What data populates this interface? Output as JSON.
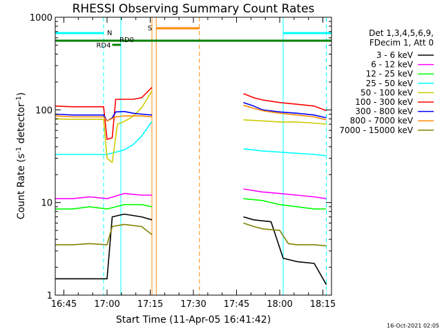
{
  "chart_data": {
    "type": "line",
    "title": "RHESSI Observing Summary Count Rates",
    "xlabel": "Start Time (11-Apr-05 16:41:42)",
    "ylabel_main": "Count Rate (s",
    "ylabel_sup1": "-1",
    "ylabel_mid": " detector",
    "ylabel_sup2": "-1",
    "ylabel_end": ")",
    "y_scale": "log",
    "ylim": [
      1,
      1000
    ],
    "xlim_minutes": [
      16.7,
      18.3
    ],
    "x_ticks": [
      {
        "label": "16:45",
        "value": 16.75
      },
      {
        "label": "17:00",
        "value": 17.0
      },
      {
        "label": "17:15",
        "value": 17.25
      },
      {
        "label": "17:30",
        "value": 17.5
      },
      {
        "label": "17:45",
        "value": 17.75
      },
      {
        "label": "18:00",
        "value": 18.0
      },
      {
        "label": "18:15",
        "value": 18.25
      }
    ],
    "y_ticks": [
      {
        "label": "1",
        "value": 1
      },
      {
        "label": "10",
        "value": 10
      },
      {
        "label": "100",
        "value": 100
      },
      {
        "label": "1000",
        "value": 1000
      }
    ],
    "legend_header": [
      "Det 1,3,4,5,6,9,",
      "FDecim 1, Att 0"
    ],
    "legend_position": "right",
    "series": [
      {
        "name": "3 - 6 keV",
        "color": "#000000",
        "segments": [
          {
            "x": [
              16.7,
              16.8,
              16.9,
              17.0,
              17.03,
              17.1,
              17.2,
              17.26
            ],
            "y": [
              1.5,
              1.5,
              1.5,
              1.5,
              7.0,
              7.5,
              7.0,
              6.5
            ]
          },
          {
            "x": [
              17.79,
              17.85,
              17.95,
              18.02,
              18.1,
              18.2,
              18.27
            ],
            "y": [
              7.0,
              6.5,
              6.2,
              2.5,
              2.3,
              2.2,
              1.3
            ]
          }
        ]
      },
      {
        "name": "6 - 12 keV",
        "color": "#ff00ff",
        "segments": [
          {
            "x": [
              16.7,
              16.8,
              16.9,
              17.0,
              17.1,
              17.2,
              17.26
            ],
            "y": [
              11,
              11,
              11.5,
              11,
              12.5,
              12,
              12
            ]
          },
          {
            "x": [
              17.79,
              17.9,
              18.0,
              18.1,
              18.2,
              18.27
            ],
            "y": [
              14,
              13,
              12.5,
              12,
              11.5,
              11
            ]
          }
        ]
      },
      {
        "name": "12 - 25 keV",
        "color": "#00ff00",
        "segments": [
          {
            "x": [
              16.7,
              16.8,
              16.9,
              17.0,
              17.1,
              17.2,
              17.26
            ],
            "y": [
              8.5,
              8.5,
              9,
              8.5,
              9.5,
              9.5,
              9
            ]
          },
          {
            "x": [
              17.79,
              17.9,
              18.0,
              18.1,
              18.2,
              18.27
            ],
            "y": [
              11,
              10.5,
              9.5,
              9,
              8.5,
              8.5
            ]
          }
        ]
      },
      {
        "name": "25 - 50 keV",
        "color": "#00ffff",
        "segments": [
          {
            "x": [
              16.7,
              16.8,
              16.9,
              17.0,
              17.1,
              17.15,
              17.2,
              17.26
            ],
            "y": [
              33,
              33,
              33,
              33,
              37,
              42,
              52,
              75
            ]
          },
          {
            "x": [
              17.79,
              17.9,
              18.0,
              18.1,
              18.2,
              18.27
            ],
            "y": [
              38,
              36,
              35,
              34,
              33,
              32
            ]
          }
        ]
      },
      {
        "name": "50 - 100 keV",
        "color": "#cccc00",
        "segments": [
          {
            "x": [
              16.7,
              16.8,
              16.9,
              16.98,
              17.0,
              17.03,
              17.06,
              17.1,
              17.15,
              17.2,
              17.26
            ],
            "y": [
              80,
              79,
              79,
              79,
              30,
              27,
              70,
              75,
              85,
              105,
              160
            ]
          },
          {
            "x": [
              17.79,
              17.9,
              18.0,
              18.1,
              18.2,
              18.27
            ],
            "y": [
              78,
              76,
              74,
              74,
              72,
              70
            ]
          }
        ]
      },
      {
        "name": "100 - 300 keV",
        "color": "#ff0000",
        "segments": [
          {
            "x": [
              16.7,
              16.8,
              16.9,
              16.98,
              17.0,
              17.03,
              17.05,
              17.1,
              17.15,
              17.2,
              17.26
            ],
            "y": [
              110,
              108,
              108,
              108,
              48,
              50,
              130,
              130,
              130,
              135,
              175
            ]
          },
          {
            "x": [
              17.79,
              17.85,
              17.9,
              18.0,
              18.1,
              18.2,
              18.27
            ],
            "y": [
              150,
              135,
              128,
              120,
              115,
              110,
              98
            ]
          }
        ]
      },
      {
        "name": "300 - 800 keV",
        "color": "#0000ff",
        "segments": [
          {
            "x": [
              16.7,
              16.8,
              16.9,
              16.98,
              17.0,
              17.03,
              17.05,
              17.1,
              17.15,
              17.2,
              17.26
            ],
            "y": [
              90,
              88,
              88,
              88,
              76,
              82,
              95,
              96,
              92,
              90,
              88
            ]
          },
          {
            "x": [
              17.79,
              17.85,
              17.9,
              18.0,
              18.1,
              18.2,
              18.27
            ],
            "y": [
              120,
              110,
              100,
              95,
              92,
              88,
              82
            ]
          }
        ]
      },
      {
        "name": "800 - 7000 keV",
        "color": "#ff8800",
        "segments": [
          {
            "x": [
              16.7,
              16.8,
              16.9,
              16.98,
              17.0,
              17.05,
              17.1,
              17.2,
              17.26
            ],
            "y": [
              86,
              84,
              84,
              84,
              76,
              84,
              86,
              86,
              84
            ]
          },
          {
            "x": [
              17.79,
              17.85,
              17.9,
              18.0,
              18.1,
              18.2,
              18.27
            ],
            "y": [
              112,
              104,
              98,
              92,
              88,
              84,
              78
            ]
          }
        ]
      },
      {
        "name": "7000 - 15000 keV",
        "color": "#808000",
        "segments": [
          {
            "x": [
              16.7,
              16.8,
              16.9,
              17.0,
              17.03,
              17.1,
              17.2,
              17.26
            ],
            "y": [
              3.5,
              3.5,
              3.6,
              3.5,
              5.5,
              5.8,
              5.5,
              4.5
            ]
          },
          {
            "x": [
              17.79,
              17.85,
              17.9,
              18.0,
              18.05,
              18.1,
              18.2,
              18.27
            ],
            "y": [
              6,
              5.5,
              5.2,
              5,
              3.6,
              3.5,
              3.5,
              3.4
            ]
          }
        ]
      }
    ],
    "annotations": {
      "N_label": "N",
      "S_label": "S",
      "RD0_label": "RD0",
      "RD4_label": "RD4",
      "N_intervals": [
        [
          16.7,
          16.98
        ],
        [
          18.02,
          18.3
        ]
      ],
      "N_color": "#00ffff",
      "S_line": 17.285,
      "S_interval": [
        17.285,
        17.535
      ],
      "S_color": "#ff8800",
      "RD0_interval": [
        16.7,
        18.3
      ],
      "RD4_interval": [
        17.03,
        17.08
      ],
      "RD_color": "#008000",
      "cyan_lines_solid": [
        16.7,
        17.08,
        18.02
      ],
      "cyan_lines_dashed": [
        16.98,
        18.27
      ],
      "orange_lines_solid": [
        17.26
      ],
      "orange_lines_dashed": [
        17.535
      ]
    },
    "footer_date": "16-Oct-2021 02:05"
  }
}
